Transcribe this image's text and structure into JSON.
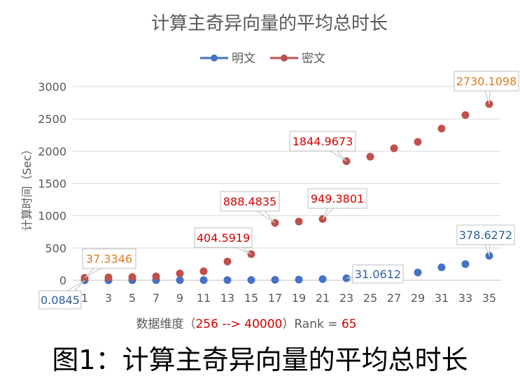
{
  "chart_data": {
    "type": "scatter",
    "title": "计算主奇异向量的平均总时长",
    "ylabel": "计算时间（Sec）",
    "xlabel": {
      "prefix": "数据维度（",
      "range": "256 --> 40000",
      "middle": "）Rank = ",
      "rank": "65"
    },
    "x_ticks": [
      1,
      3,
      5,
      7,
      9,
      11,
      13,
      15,
      17,
      19,
      21,
      23,
      25,
      27,
      29,
      31,
      33,
      35
    ],
    "y_ticks": [
      0,
      500,
      1000,
      1500,
      2000,
      2500,
      3000
    ],
    "xlim": [
      0,
      36
    ],
    "ylim": [
      0,
      3000
    ],
    "legend_position": "top",
    "grid": "horizontal",
    "series": [
      {
        "name": "明文",
        "color": "#4472c4",
        "x": [
          1,
          3,
          5,
          7,
          9,
          11,
          13,
          15,
          17,
          19,
          21,
          23,
          25,
          27,
          29,
          31,
          33,
          35
        ],
        "y": [
          0.0845,
          0.3,
          0.6,
          1.0,
          1.5,
          2.2,
          3.2,
          4.5,
          6.5,
          9.5,
          18,
          31.0612,
          48,
          80,
          120,
          200,
          250,
          378.6272
        ]
      },
      {
        "name": "密文",
        "color": "#c0504d",
        "x": [
          1,
          3,
          5,
          7,
          9,
          11,
          13,
          15,
          17,
          19,
          21,
          23,
          25,
          27,
          29,
          31,
          33,
          35
        ],
        "y": [
          37.3346,
          45,
          50,
          60,
          105,
          140,
          290,
          404.5919,
          888.4835,
          910,
          949.3801,
          1844.9673,
          1915,
          2045,
          2145,
          2350,
          2560,
          2730.1098
        ]
      }
    ],
    "annotations": [
      {
        "series": 0,
        "x": 1,
        "label": "0.0845",
        "color": "#2e5f9e"
      },
      {
        "series": 1,
        "x": 1,
        "label": "37.3346",
        "color": "#e07b1f"
      },
      {
        "series": 1,
        "x": 15,
        "label": "404.5919",
        "color": "#d40000"
      },
      {
        "series": 1,
        "x": 17,
        "label": "888.4835",
        "color": "#d40000"
      },
      {
        "series": 1,
        "x": 21,
        "label": "949.3801",
        "color": "#d40000"
      },
      {
        "series": 1,
        "x": 23,
        "label": "1844.9673",
        "color": "#d40000"
      },
      {
        "series": 1,
        "x": 35,
        "label": "2730.1098",
        "color": "#e07b1f"
      },
      {
        "series": 0,
        "x": 23,
        "label": "31.0612",
        "color": "#2e5f9e"
      },
      {
        "series": 0,
        "x": 35,
        "label": "378.6272",
        "color": "#2e5f9e"
      }
    ]
  },
  "caption": {
    "prefix": "图1：",
    "text": "计算主奇异向量的平均总时长"
  }
}
